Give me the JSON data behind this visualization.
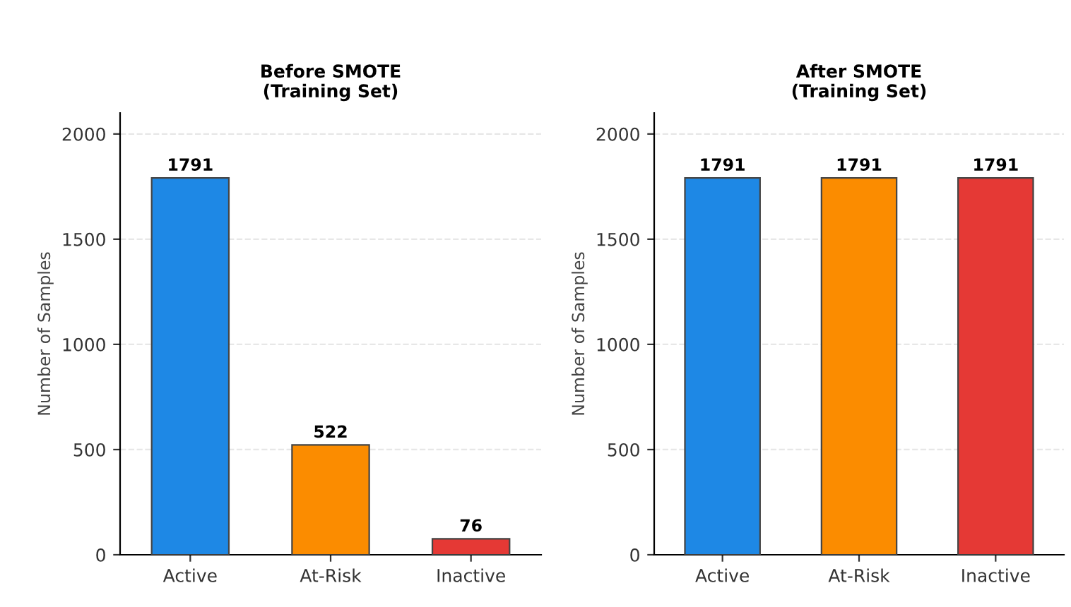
{
  "chart_data": [
    {
      "type": "bar",
      "title": "Before SMOTE\n(Training Set)",
      "ylabel": "Number of Samples",
      "categories": [
        "Active",
        "At-Risk",
        "Inactive"
      ],
      "values": [
        1791,
        522,
        76
      ],
      "colors": [
        "#1e88e5",
        "#fb8c00",
        "#e53935"
      ],
      "ylim": [
        0,
        2100
      ],
      "yticks": [
        0,
        500,
        1000,
        1500,
        2000
      ],
      "grid": "y",
      "data_labels": true
    },
    {
      "type": "bar",
      "title": "After SMOTE\n(Training Set)",
      "ylabel": "Number of Samples",
      "categories": [
        "Active",
        "At-Risk",
        "Inactive"
      ],
      "values": [
        1791,
        1791,
        1791
      ],
      "colors": [
        "#1e88e5",
        "#fb8c00",
        "#e53935"
      ],
      "ylim": [
        0,
        2100
      ],
      "yticks": [
        0,
        500,
        1000,
        1500,
        2000
      ],
      "grid": "y",
      "data_labels": true
    }
  ]
}
